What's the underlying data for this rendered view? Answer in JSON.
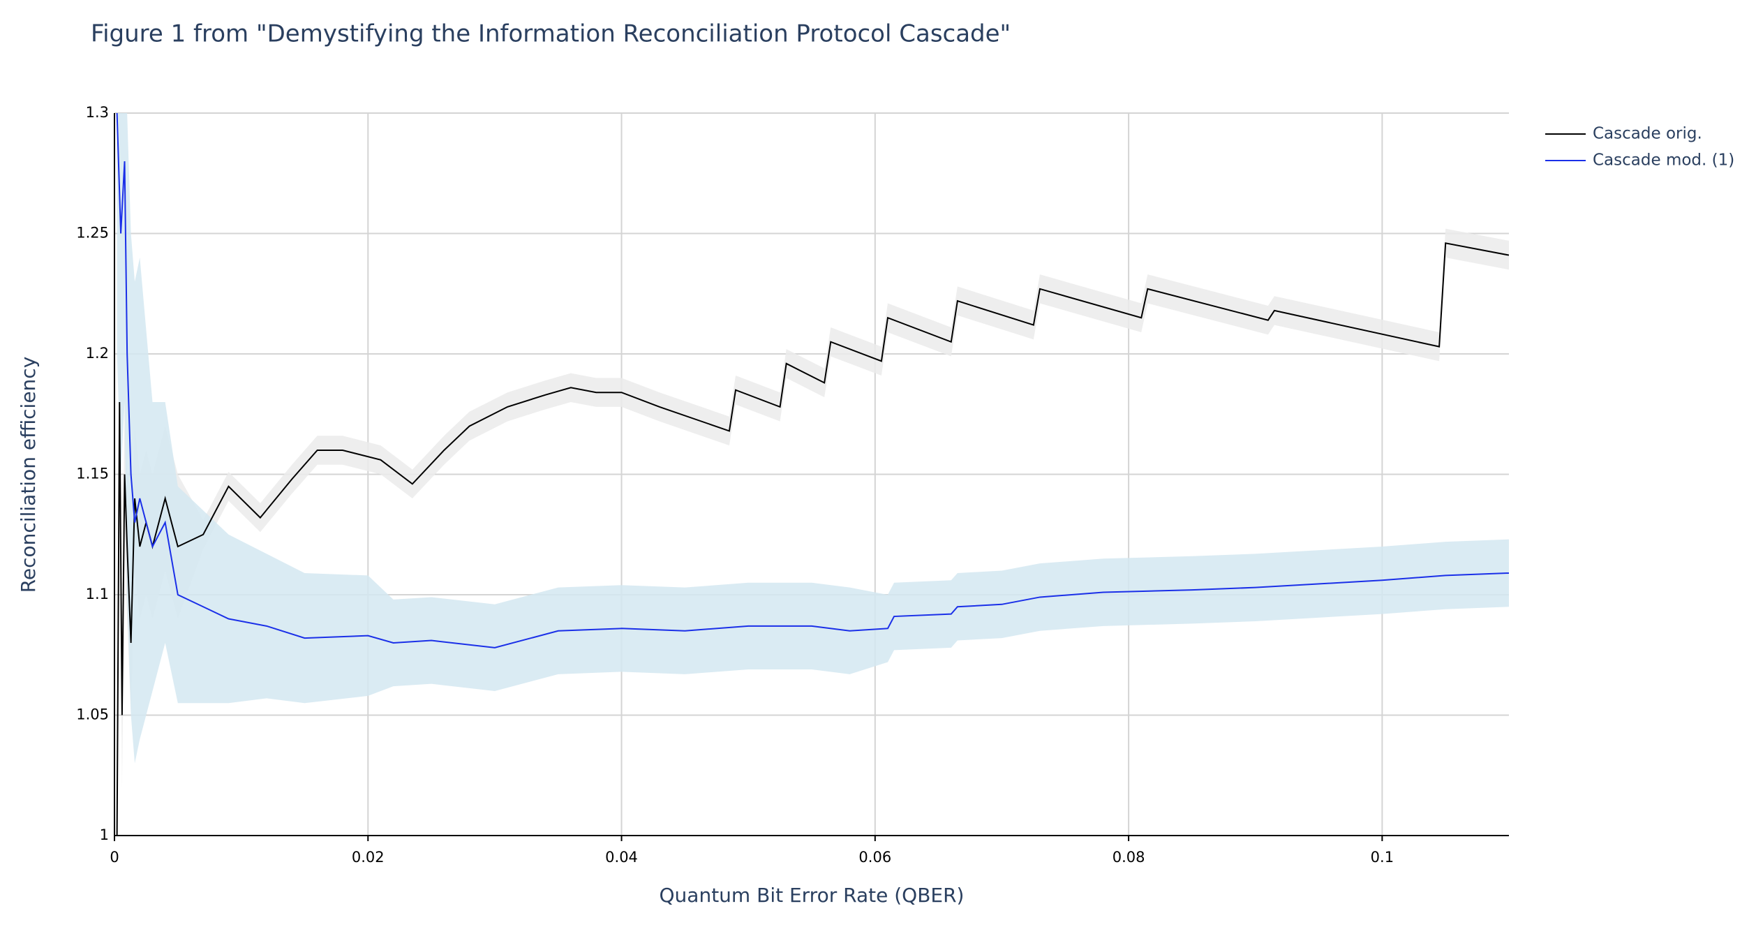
{
  "chart_data": {
    "type": "line",
    "title": "Figure 1 from \"Demystifying the Information Reconciliation Protocol Cascade\"",
    "xlabel": "Quantum Bit Error Rate (QBER)",
    "ylabel": "Reconciliation efficiency",
    "xlim": [
      0,
      0.11
    ],
    "ylim": [
      1,
      1.3
    ],
    "xticks": [
      0,
      0.02,
      0.04,
      0.06,
      0.08,
      0.1
    ],
    "yticks": [
      1,
      1.05,
      1.1,
      1.15,
      1.2,
      1.25,
      1.3
    ],
    "grid": true,
    "legend": "right",
    "series": [
      {
        "name": "Cascade orig.",
        "color": "#000000",
        "band_color": "#ebebeb",
        "x": [
          0.0002,
          0.0004,
          0.0006,
          0.0008,
          0.001,
          0.0013,
          0.0016,
          0.002,
          0.0025,
          0.003,
          0.004,
          0.005,
          0.007,
          0.009,
          0.0115,
          0.014,
          0.016,
          0.018,
          0.021,
          0.0235,
          0.026,
          0.028,
          0.031,
          0.034,
          0.036,
          0.038,
          0.04,
          0.043,
          0.0485,
          0.049,
          0.0525,
          0.053,
          0.056,
          0.0565,
          0.0605,
          0.061,
          0.066,
          0.0665,
          0.0725,
          0.073,
          0.081,
          0.0815,
          0.091,
          0.0915,
          0.1045,
          0.105,
          0.11
        ],
        "values": [
          1.0,
          1.18,
          1.05,
          1.15,
          1.12,
          1.08,
          1.14,
          1.12,
          1.13,
          1.12,
          1.14,
          1.12,
          1.125,
          1.145,
          1.132,
          1.148,
          1.16,
          1.16,
          1.156,
          1.146,
          1.16,
          1.17,
          1.178,
          1.183,
          1.186,
          1.184,
          1.184,
          1.178,
          1.168,
          1.185,
          1.178,
          1.196,
          1.188,
          1.205,
          1.197,
          1.215,
          1.205,
          1.222,
          1.212,
          1.227,
          1.215,
          1.227,
          1.214,
          1.218,
          1.203,
          1.246,
          1.241
        ],
        "lower": [
          0.97,
          1.15,
          1.02,
          1.12,
          1.09,
          1.05,
          1.11,
          1.09,
          1.1,
          1.09,
          1.11,
          1.09,
          1.119,
          1.139,
          1.126,
          1.142,
          1.154,
          1.154,
          1.15,
          1.14,
          1.154,
          1.164,
          1.172,
          1.177,
          1.18,
          1.178,
          1.178,
          1.172,
          1.162,
          1.179,
          1.172,
          1.19,
          1.182,
          1.199,
          1.191,
          1.209,
          1.199,
          1.216,
          1.206,
          1.221,
          1.209,
          1.221,
          1.208,
          1.212,
          1.197,
          1.24,
          1.235
        ],
        "upper": [
          1.03,
          1.21,
          1.08,
          1.18,
          1.15,
          1.11,
          1.17,
          1.15,
          1.16,
          1.15,
          1.17,
          1.15,
          1.131,
          1.151,
          1.138,
          1.154,
          1.166,
          1.166,
          1.162,
          1.152,
          1.166,
          1.176,
          1.184,
          1.189,
          1.192,
          1.19,
          1.19,
          1.184,
          1.174,
          1.191,
          1.184,
          1.202,
          1.194,
          1.211,
          1.203,
          1.221,
          1.211,
          1.228,
          1.218,
          1.233,
          1.221,
          1.233,
          1.22,
          1.224,
          1.209,
          1.252,
          1.247
        ]
      },
      {
        "name": "Cascade mod. (1)",
        "color": "#1a2fe8",
        "band_color": "#d4e7f1",
        "x": [
          0.0002,
          0.0005,
          0.0008,
          0.001,
          0.0013,
          0.0016,
          0.002,
          0.003,
          0.004,
          0.005,
          0.007,
          0.009,
          0.012,
          0.015,
          0.02,
          0.022,
          0.025,
          0.03,
          0.035,
          0.04,
          0.045,
          0.05,
          0.055,
          0.058,
          0.061,
          0.0615,
          0.066,
          0.0665,
          0.07,
          0.073,
          0.078,
          0.085,
          0.09,
          0.1,
          0.105,
          0.11
        ],
        "values": [
          1.3,
          1.25,
          1.28,
          1.2,
          1.15,
          1.13,
          1.14,
          1.12,
          1.13,
          1.1,
          1.095,
          1.09,
          1.087,
          1.082,
          1.083,
          1.08,
          1.081,
          1.078,
          1.085,
          1.086,
          1.085,
          1.087,
          1.087,
          1.085,
          1.086,
          1.091,
          1.092,
          1.095,
          1.096,
          1.099,
          1.101,
          1.102,
          1.103,
          1.106,
          1.108,
          1.109
        ],
        "lower": [
          1.2,
          1.15,
          1.18,
          1.1,
          1.05,
          1.03,
          1.04,
          1.06,
          1.08,
          1.055,
          1.055,
          1.055,
          1.057,
          1.055,
          1.058,
          1.062,
          1.063,
          1.06,
          1.067,
          1.068,
          1.067,
          1.069,
          1.069,
          1.067,
          1.072,
          1.077,
          1.078,
          1.081,
          1.082,
          1.085,
          1.087,
          1.088,
          1.089,
          1.092,
          1.094,
          1.095
        ],
        "upper": [
          1.4,
          1.35,
          1.38,
          1.3,
          1.25,
          1.23,
          1.24,
          1.18,
          1.18,
          1.145,
          1.135,
          1.125,
          1.117,
          1.109,
          1.108,
          1.098,
          1.099,
          1.096,
          1.103,
          1.104,
          1.103,
          1.105,
          1.105,
          1.103,
          1.1,
          1.105,
          1.106,
          1.109,
          1.11,
          1.113,
          1.115,
          1.116,
          1.117,
          1.12,
          1.122,
          1.123
        ]
      }
    ]
  }
}
